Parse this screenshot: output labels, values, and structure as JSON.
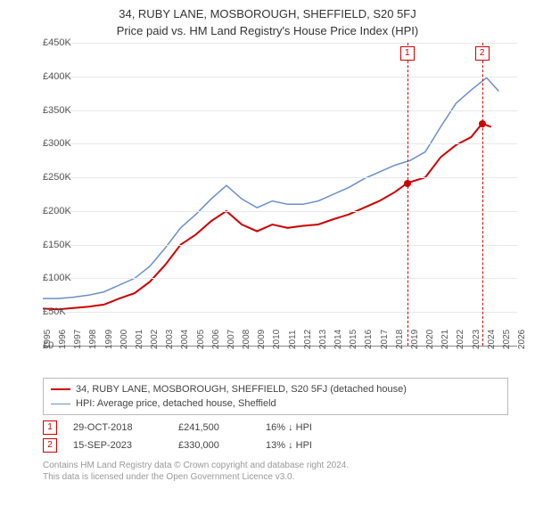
{
  "title": {
    "line1": "34, RUBY LANE, MOSBOROUGH, SHEFFIELD, S20 5FJ",
    "line2": "Price paid vs. HM Land Registry's House Price Index (HPI)"
  },
  "chart": {
    "type": "line",
    "background_color": "#ffffff",
    "grid_color": "#e8e8e8",
    "axis_color": "#888888",
    "label_fontsize": 11,
    "ylim": [
      0,
      450000
    ],
    "ytick_step": 50000,
    "yticks": [
      "£0",
      "£50K",
      "£100K",
      "£150K",
      "£200K",
      "£250K",
      "£300K",
      "£350K",
      "£400K",
      "£450K"
    ],
    "xlim": [
      1995,
      2026
    ],
    "xticks": [
      1995,
      1996,
      1997,
      1998,
      1999,
      2000,
      2001,
      2002,
      2003,
      2004,
      2005,
      2006,
      2007,
      2008,
      2009,
      2010,
      2011,
      2012,
      2013,
      2014,
      2015,
      2016,
      2017,
      2018,
      2019,
      2020,
      2021,
      2022,
      2023,
      2024,
      2025,
      2026
    ],
    "series": [
      {
        "name": "property",
        "label": "34, RUBY LANE, MOSBOROUGH, SHEFFIELD, S20 5FJ (detached house)",
        "color": "#cc0000",
        "line_width": 2,
        "data": [
          [
            1995,
            55000
          ],
          [
            1996,
            54000
          ],
          [
            1997,
            56000
          ],
          [
            1998,
            58000
          ],
          [
            1999,
            61000
          ],
          [
            2000,
            70000
          ],
          [
            2001,
            78000
          ],
          [
            2002,
            95000
          ],
          [
            2003,
            120000
          ],
          [
            2004,
            150000
          ],
          [
            2005,
            165000
          ],
          [
            2006,
            185000
          ],
          [
            2007,
            200000
          ],
          [
            2008,
            180000
          ],
          [
            2009,
            170000
          ],
          [
            2010,
            180000
          ],
          [
            2011,
            175000
          ],
          [
            2012,
            178000
          ],
          [
            2013,
            180000
          ],
          [
            2014,
            188000
          ],
          [
            2015,
            195000
          ],
          [
            2016,
            205000
          ],
          [
            2017,
            215000
          ],
          [
            2018,
            228000
          ],
          [
            2018.82,
            241500
          ],
          [
            2019,
            243000
          ],
          [
            2020,
            250000
          ],
          [
            2021,
            280000
          ],
          [
            2022,
            298000
          ],
          [
            2023,
            310000
          ],
          [
            2023.71,
            330000
          ],
          [
            2024.3,
            325000
          ]
        ]
      },
      {
        "name": "hpi",
        "label": "HPI: Average price, detached house, Sheffield",
        "color": "#6b8fc7",
        "line_width": 1.5,
        "data": [
          [
            1995,
            70000
          ],
          [
            1996,
            70000
          ],
          [
            1997,
            72000
          ],
          [
            1998,
            75000
          ],
          [
            1999,
            80000
          ],
          [
            2000,
            90000
          ],
          [
            2001,
            100000
          ],
          [
            2002,
            118000
          ],
          [
            2003,
            145000
          ],
          [
            2004,
            175000
          ],
          [
            2005,
            195000
          ],
          [
            2006,
            218000
          ],
          [
            2007,
            238000
          ],
          [
            2008,
            218000
          ],
          [
            2009,
            205000
          ],
          [
            2010,
            215000
          ],
          [
            2011,
            210000
          ],
          [
            2012,
            210000
          ],
          [
            2013,
            215000
          ],
          [
            2014,
            225000
          ],
          [
            2015,
            235000
          ],
          [
            2016,
            248000
          ],
          [
            2017,
            258000
          ],
          [
            2018,
            268000
          ],
          [
            2019,
            275000
          ],
          [
            2020,
            288000
          ],
          [
            2021,
            325000
          ],
          [
            2022,
            360000
          ],
          [
            2023,
            380000
          ],
          [
            2024,
            398000
          ],
          [
            2024.8,
            378000
          ]
        ]
      }
    ],
    "markers": [
      {
        "id": "1",
        "x": 2018.82,
        "y": 241500
      },
      {
        "id": "2",
        "x": 2023.71,
        "y": 330000
      }
    ]
  },
  "legend": {
    "items": [
      {
        "color": "#cc0000",
        "width": 2,
        "label": "34, RUBY LANE, MOSBOROUGH, SHEFFIELD, S20 5FJ (detached house)"
      },
      {
        "color": "#6b8fc7",
        "width": 1.5,
        "label": "HPI: Average price, detached house, Sheffield"
      }
    ]
  },
  "sales": [
    {
      "marker": "1",
      "date": "29-OCT-2018",
      "price": "£241,500",
      "diff": "16% ↓ HPI"
    },
    {
      "marker": "2",
      "date": "15-SEP-2023",
      "price": "£330,000",
      "diff": "13% ↓ HPI"
    }
  ],
  "footer": {
    "line1": "Contains HM Land Registry data © Crown copyright and database right 2024.",
    "line2": "This data is licensed under the Open Government Licence v3.0."
  }
}
